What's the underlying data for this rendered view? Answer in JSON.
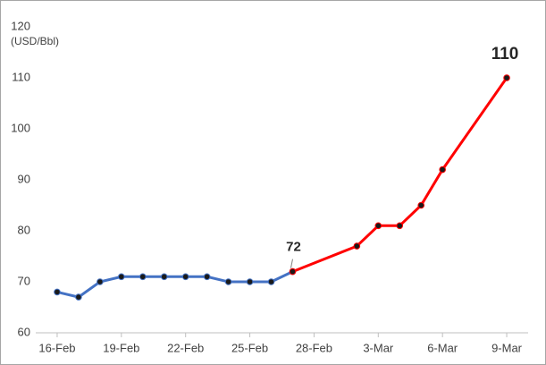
{
  "chart_data": {
    "type": "line",
    "y_label": "(USD/Bbl)",
    "xlim": [
      46,
      69
    ],
    "xticks": [
      {
        "value": 47,
        "label": "16-Feb"
      },
      {
        "value": 50,
        "label": "19-Feb"
      },
      {
        "value": 53,
        "label": "22-Feb"
      },
      {
        "value": 56,
        "label": "25-Feb"
      },
      {
        "value": 59,
        "label": "28-Feb"
      },
      {
        "value": 62,
        "label": "3-Mar"
      },
      {
        "value": 65,
        "label": "6-Mar"
      },
      {
        "value": 68,
        "label": "9-Mar"
      }
    ],
    "ylim": [
      60,
      120
    ],
    "yticks": [
      60,
      70,
      80,
      90,
      100,
      110,
      120
    ],
    "grid": false,
    "series": [
      {
        "color": "#4472c4",
        "x": [
          47,
          48,
          49,
          50,
          51,
          52,
          53,
          54,
          55,
          56,
          57,
          58
        ],
        "values": [
          68,
          67,
          70,
          71,
          71,
          71,
          71,
          71,
          70,
          70,
          70,
          72
        ],
        "value_labels": [
          null,
          null,
          null,
          null,
          null,
          null,
          null,
          null,
          null,
          null,
          null,
          "72"
        ]
      },
      {
        "color": "#ff0000",
        "x": [
          58,
          61,
          62,
          63,
          64,
          65,
          68
        ],
        "values": [
          72,
          77,
          81,
          81,
          85,
          92,
          110
        ],
        "value_labels": [
          null,
          null,
          null,
          null,
          null,
          null,
          "110"
        ]
      }
    ]
  }
}
